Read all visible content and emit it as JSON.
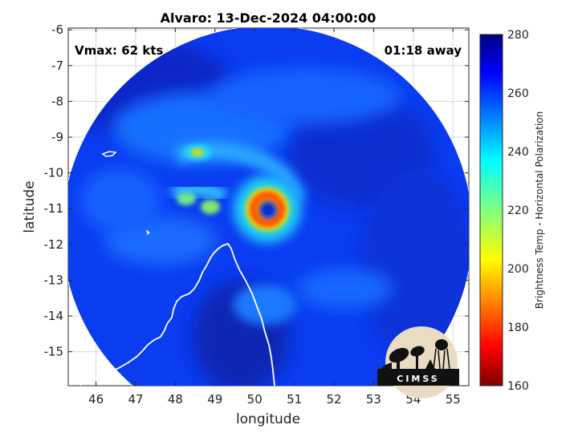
{
  "title": "Alvaro: 13-Dec-2024 04:00:00",
  "vmax_label": "Vmax: 62 kts",
  "time_away_label": "01:18 away",
  "colorbar": {
    "label": "Brightness Temp - Horizontal Polarization",
    "min": 160,
    "max": 280,
    "ticks": [
      "280",
      "260",
      "240",
      "220",
      "200",
      "180",
      "160"
    ]
  },
  "logo_text": "CIMSS",
  "chart_data": {
    "type": "heatmap",
    "title": "Alvaro: 13-Dec-2024 04:00:00",
    "xlabel": "longitude",
    "ylabel": "latitude",
    "xlim": [
      45.3,
      55.4
    ],
    "ylim": [
      -15.95,
      -5.95
    ],
    "x_ticks": [
      "46",
      "47",
      "48",
      "49",
      "50",
      "51",
      "52",
      "53",
      "54",
      "55"
    ],
    "y_ticks": [
      "-6",
      "-7",
      "-8",
      "-9",
      "-10",
      "-11",
      "-12",
      "-13",
      "-14",
      "-15"
    ],
    "grid": true,
    "storm_center": {
      "lon": 50.4,
      "lat": -11.0
    },
    "eye_ring_min_temp": 180,
    "background_temp": 262,
    "colormap": "jet",
    "color_range": [
      160,
      280
    ]
  }
}
